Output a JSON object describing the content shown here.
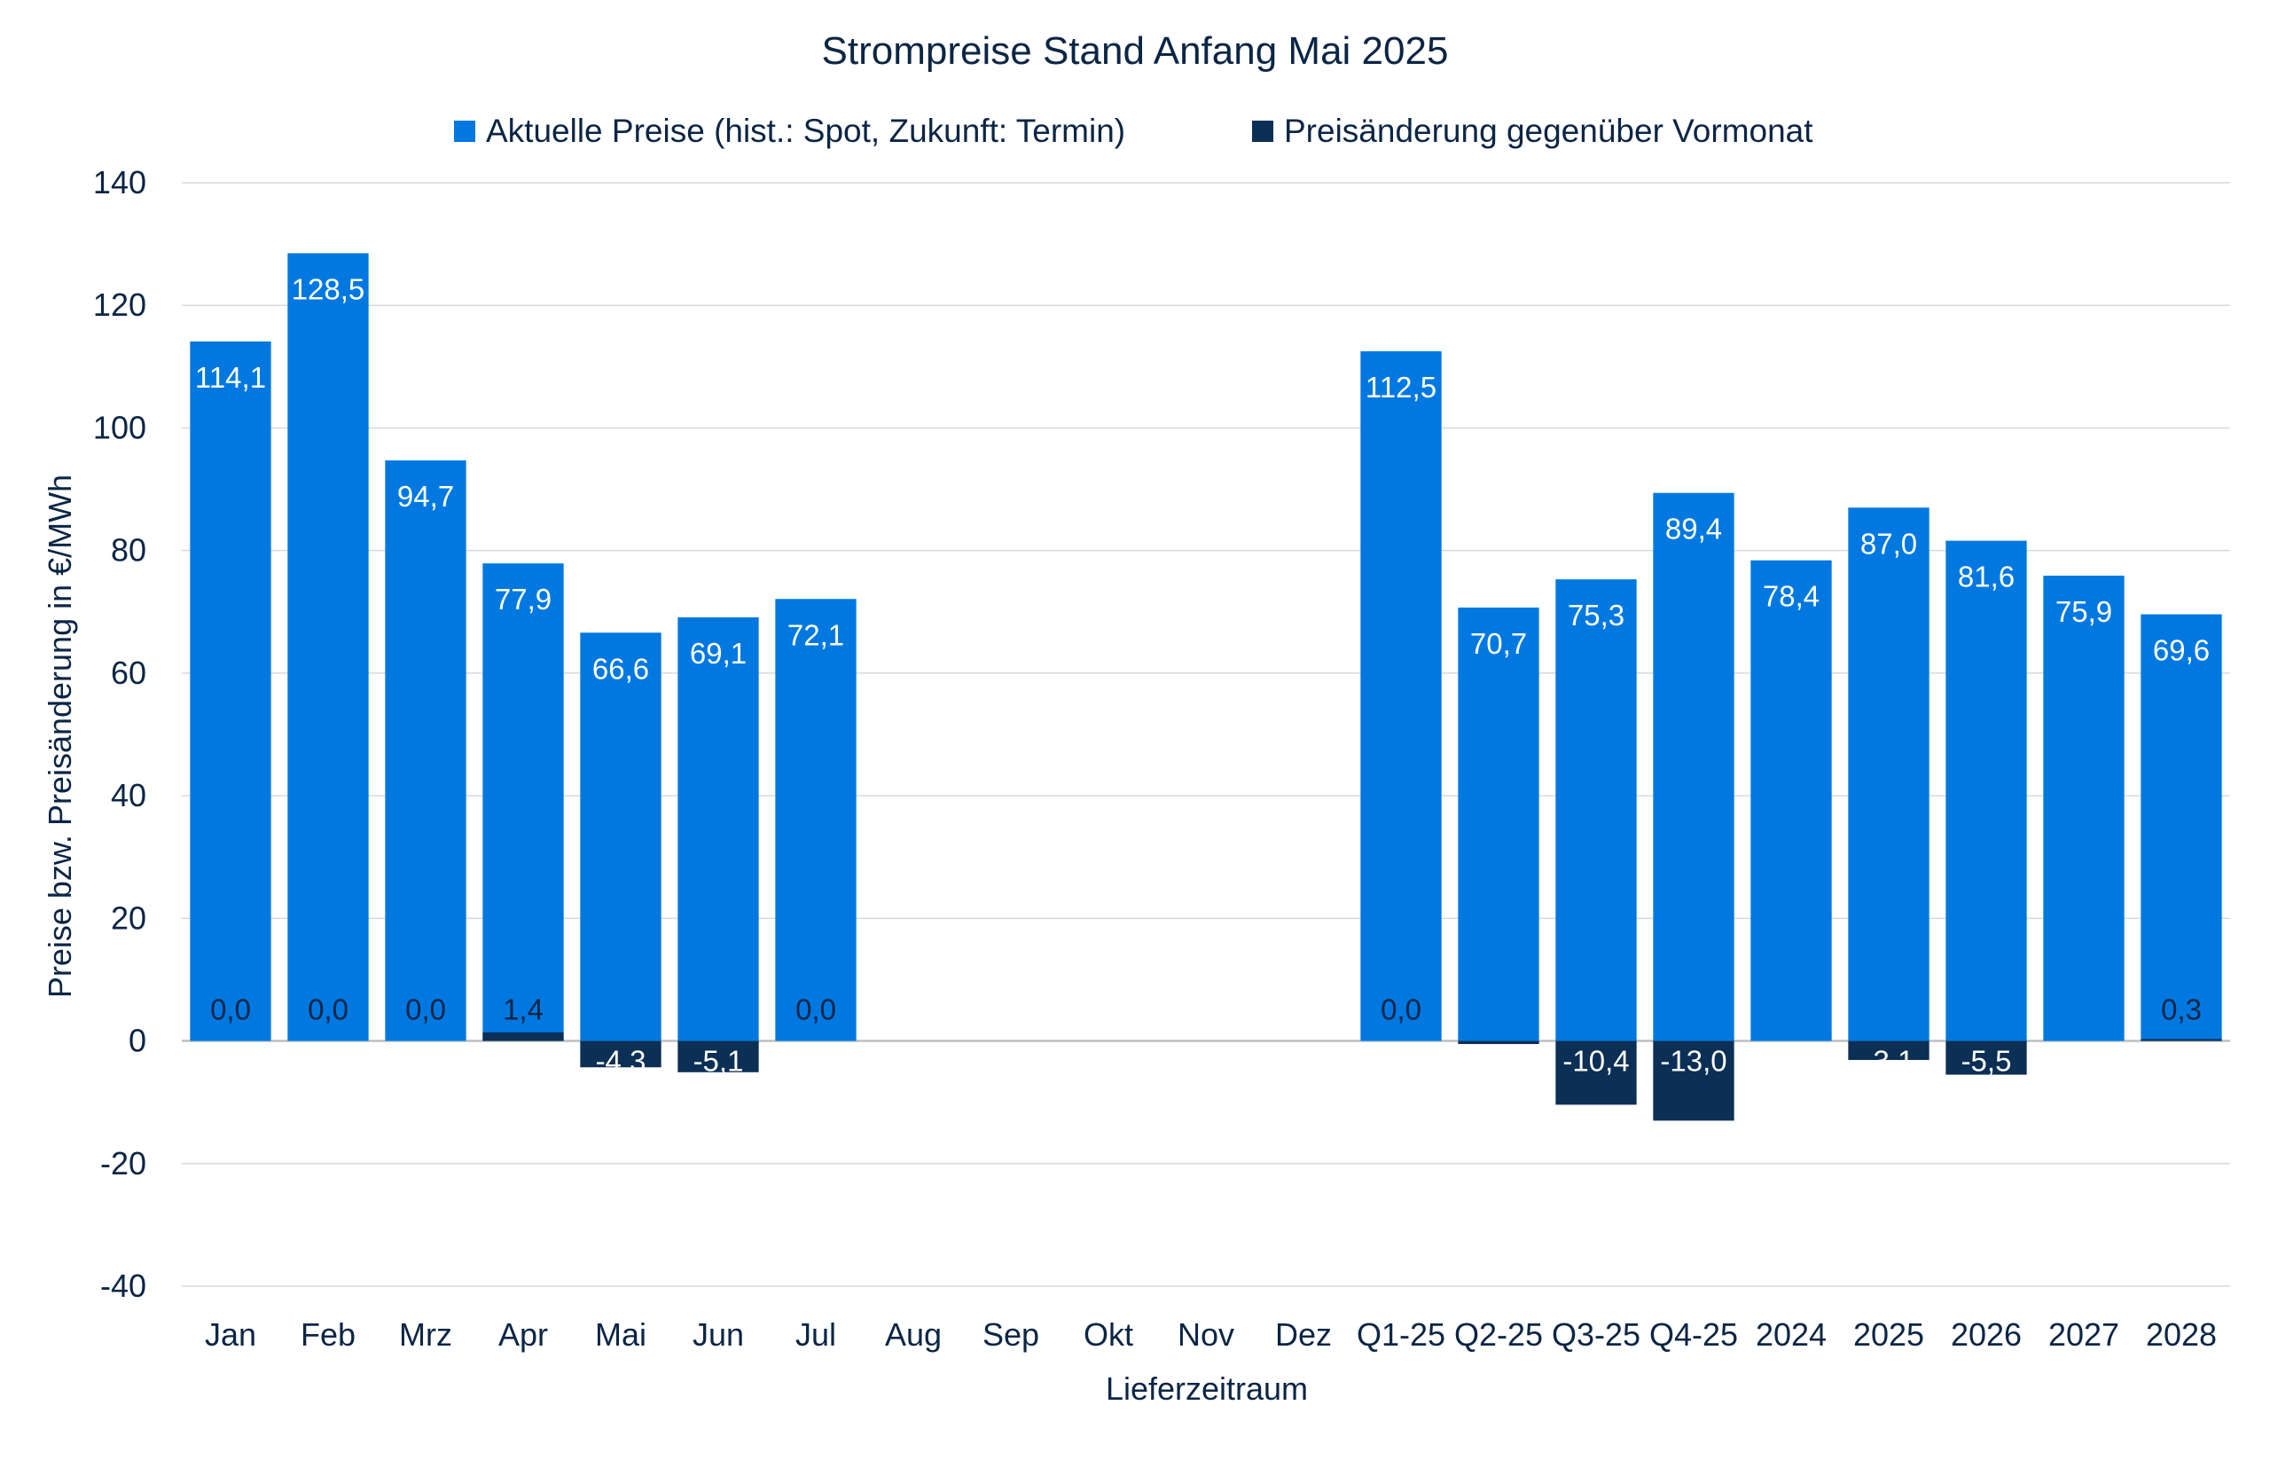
{
  "colors": {
    "price": "#0078e0",
    "change": "#0c2f55",
    "grid": "#d9d9d9",
    "text": "#0b2545",
    "label_on_price": "#ffffff",
    "label_on_change": "#ffffff",
    "label_zero": "#0b2545"
  },
  "chart_data": {
    "type": "bar",
    "title": "Strompreise Stand Anfang Mai 2025",
    "xlabel": "Lieferzeitraum",
    "ylabel": "Preise bzw. Preisänderung in €/MWh",
    "ylim": [
      -40,
      140
    ],
    "yticks": [
      140,
      120,
      100,
      80,
      60,
      40,
      20,
      0,
      -20,
      -40
    ],
    "grid": true,
    "legend_position": "top",
    "categories": [
      "Jan",
      "Feb",
      "Mrz",
      "Apr",
      "Mai",
      "Jun",
      "Jul",
      "Aug",
      "Sep",
      "Okt",
      "Nov",
      "Dez",
      "Q1-25",
      "Q2-25",
      "Q3-25",
      "Q4-25",
      "2024",
      "2025",
      "2026",
      "2027",
      "2028"
    ],
    "series": [
      {
        "name": "Aktuelle Preise (hist.: Spot, Zukunft: Termin)",
        "values": [
          114.1,
          128.5,
          94.7,
          77.9,
          66.6,
          69.1,
          72.1,
          null,
          null,
          null,
          null,
          null,
          112.5,
          70.7,
          75.3,
          89.4,
          78.4,
          87.0,
          81.6,
          75.9,
          69.6
        ],
        "labels": [
          "114,1",
          "128,5",
          "94,7",
          "77,9",
          "66,6",
          "69,1",
          "72,1",
          "",
          "",
          "",
          "",
          "",
          "112,5",
          "70,7",
          "75,3",
          "89,4",
          "78,4",
          "87,0",
          "81,6",
          "75,9",
          "69,6"
        ]
      },
      {
        "name": "Preisänderung gegenüber Vormonat",
        "values": [
          0.0,
          0.0,
          0.0,
          1.4,
          -4.3,
          -5.1,
          0.0,
          null,
          null,
          null,
          null,
          null,
          0.0,
          -0.5,
          -10.4,
          -13.0,
          null,
          -3.1,
          -5.5,
          null,
          0.3
        ],
        "labels": [
          "0,0",
          "0,0",
          "0,0",
          "1,4",
          "-4,3",
          "-5,1",
          "0,0",
          "",
          "",
          "",
          "",
          "",
          "0,0",
          "",
          "-10,4",
          "-13,0",
          "",
          "-3,1",
          "-5,5",
          "",
          "0,3"
        ]
      }
    ]
  }
}
